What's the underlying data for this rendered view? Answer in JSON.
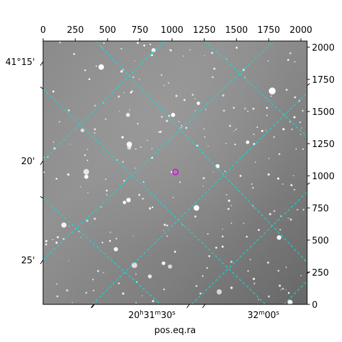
{
  "chart_data": {
    "type": "image",
    "xlabel": "pos.eq.ra",
    "ylabel": "",
    "x_pixel_ticks": [
      "0",
      "250",
      "500",
      "750",
      "1000",
      "1250",
      "1500",
      "1750",
      "2000"
    ],
    "y_pixel_ticks": [
      "0",
      "250",
      "500",
      "750",
      "1000",
      "1250",
      "1500",
      "1750",
      "2000"
    ],
    "xlim": [
      0,
      2048
    ],
    "ylim": [
      0,
      2048
    ],
    "ra_ticks": [
      {
        "label_main": "20",
        "sup_h": "h",
        "label_min": "31",
        "sup_m": "m",
        "label_sec": "30",
        "sup_s": "s"
      },
      {
        "label_main": "",
        "sup_h": "",
        "label_min": "32",
        "sup_m": "m",
        "label_sec": "00",
        "sup_s": "s"
      }
    ],
    "dec_ticks": [
      "41°15'",
      "20'",
      "25'"
    ],
    "grid": true,
    "grid_color": "#00e5e5",
    "marker": {
      "shape": "circle",
      "x": 1024,
      "y": 1024,
      "color": "#e000e0"
    },
    "background": "grayscale star field"
  }
}
